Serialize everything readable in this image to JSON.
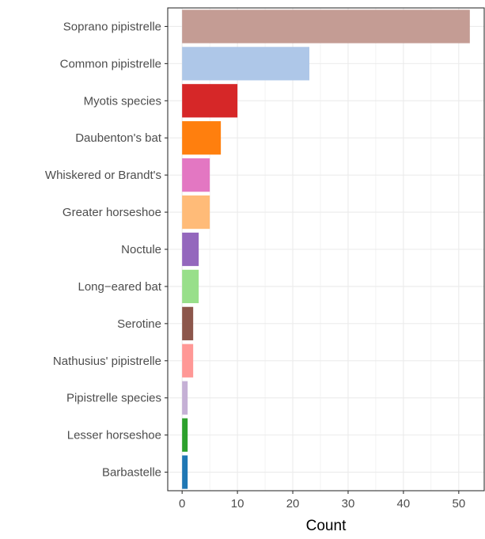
{
  "chart_data": {
    "type": "bar",
    "orientation": "horizontal",
    "categories": [
      "Soprano pipistrelle",
      "Common pipistrelle",
      "Myotis species",
      "Daubenton's bat",
      "Whiskered or Brandt's",
      "Greater horseshoe",
      "Noctule",
      "Long−eared bat",
      "Serotine",
      "Nathusius' pipistrelle",
      "Pipistrelle species",
      "Lesser horseshoe",
      "Barbastelle"
    ],
    "values": [
      52,
      23,
      10,
      7,
      5,
      5,
      3,
      3,
      2,
      2,
      1,
      1,
      1
    ],
    "colors": [
      "#c49c94",
      "#aec7e8",
      "#d62728",
      "#ff7f0e",
      "#e377c2",
      "#ffbb78",
      "#9467bd",
      "#98df8a",
      "#8c564b",
      "#ff9896",
      "#c5b0d5",
      "#2ca02c",
      "#1f77b4"
    ],
    "xlabel": "Count",
    "ylabel": "",
    "title": "",
    "xlim": [
      -2.6,
      54.6
    ],
    "xticks": [
      0,
      10,
      20,
      30,
      40,
      50
    ],
    "grid": true,
    "legend": "none"
  }
}
